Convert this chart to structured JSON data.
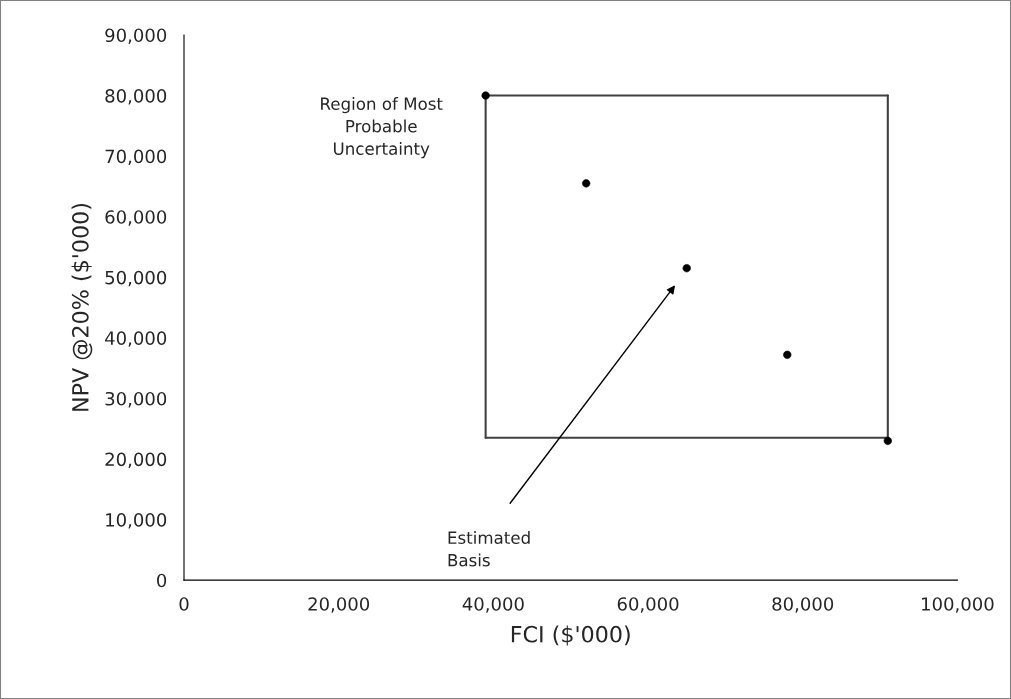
{
  "chart_data": {
    "type": "scatter",
    "xlabel": "FCI ($'000)",
    "ylabel": "NPV @20% ($'000)",
    "series": [
      {
        "color": "#000000",
        "marker": "circle",
        "x": [
          39000,
          52000,
          65000,
          78000,
          91000
        ],
        "values": [
          80000,
          65500,
          51500,
          37200,
          23000
        ]
      },
      {
        "type": "line",
        "color": "#404040",
        "marker": "none",
        "line_style": "solid",
        "x": [
          39000,
          91000
        ],
        "values": [
          80000,
          80000
        ]
      },
      {
        "type": "line",
        "color": "#404040",
        "marker": "none",
        "line_style": "solid",
        "x": [
          39000,
          91000
        ],
        "values": [
          23500,
          23500
        ]
      },
      {
        "type": "line",
        "color": "#404040",
        "marker": "none",
        "line_style": "solid",
        "x": [
          39000,
          39000
        ],
        "values": [
          23500,
          80000
        ]
      },
      {
        "type": "line",
        "color": "#404040",
        "marker": "none",
        "line_style": "solid",
        "x": [
          91000,
          91000
        ],
        "values": [
          23500,
          80000
        ]
      }
    ],
    "annotations": [
      "Region of Most\nProbable\nUncertainty",
      "Estimated\nBasis"
    ],
    "xlim": [
      0,
      100000
    ],
    "xticks": [
      {
        "value": 0,
        "label": "0"
      },
      {
        "value": 20000,
        "label": "20,000"
      },
      {
        "value": 40000,
        "label": "40,000"
      },
      {
        "value": 60000,
        "label": "60,000"
      },
      {
        "value": 80000,
        "label": "80,000"
      },
      {
        "value": 100000,
        "label": "100,000"
      }
    ],
    "ylim": [
      0,
      90000
    ],
    "yticks": [
      {
        "value": 0,
        "label": "0"
      },
      {
        "value": 10000,
        "label": "10,000"
      },
      {
        "value": 20000,
        "label": "20,000"
      },
      {
        "value": 30000,
        "label": "30,000"
      },
      {
        "value": 40000,
        "label": "40,000"
      },
      {
        "value": 50000,
        "label": "50,000"
      },
      {
        "value": 60000,
        "label": "60,000"
      },
      {
        "value": 70000,
        "label": "70,000"
      },
      {
        "value": 80000,
        "label": "80,000"
      },
      {
        "value": 90000,
        "label": "90,000"
      }
    ],
    "grid": false,
    "legend": false
  }
}
